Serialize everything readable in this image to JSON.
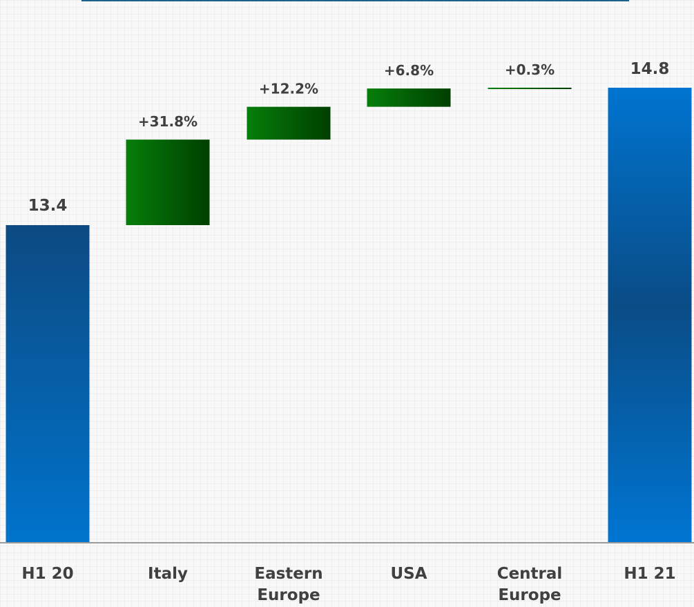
{
  "chart_data": {
    "type": "bar",
    "subtype": "waterfall",
    "grid": true,
    "categories": [
      [
        "H1 20"
      ],
      [
        "Italy"
      ],
      [
        "Eastern",
        "Europe"
      ],
      [
        "USA"
      ],
      [
        "Central",
        "Europe"
      ],
      [
        "H1 21"
      ]
    ],
    "start_value": 13.4,
    "end_value": 14.8,
    "start_label": "13.4",
    "end_label": "14.8",
    "contributions_pct": [
      31.8,
      12.2,
      6.8,
      0.3
    ],
    "contribution_labels": [
      "+31.8%",
      "+12.2%",
      "+6.8%",
      "+0.3%"
    ],
    "colors": {
      "total_dark": "#0f4f87",
      "total_light": "#0070c8",
      "increase_light": "#067e0a",
      "increase_dark": "#003f00",
      "label": "#404040",
      "axis": "#9a9a9a"
    }
  }
}
